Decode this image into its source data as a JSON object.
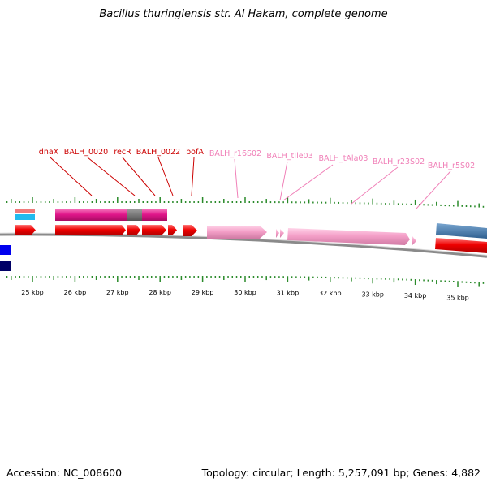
{
  "title": "Bacillus thuringiensis str. Al Hakam, complete genome",
  "footer": {
    "accession": "Accession: NC_008600",
    "stats": "Topology: circular; Length: 5,257,091 bp; Genes: 4,882"
  },
  "colors": {
    "cds": "#ee0000",
    "gene": "#e6168c",
    "rna": "#f4a0c8",
    "rna_label": "#f080b8",
    "cds_label": "#cc0000",
    "tick": "#2a8a2a",
    "backbone": "#8a8a8a",
    "unannotated": "#707070",
    "blue_feature": "#4a7fb0",
    "navy_feature": "#000066",
    "bright_blue": "#0000ee",
    "cyan_track": "#22bbee",
    "salmon_track": "#f07a7a"
  },
  "scale": {
    "unit": "kbp",
    "ticks": [
      {
        "kbp": 25,
        "label": "25 kbp"
      },
      {
        "kbp": 26,
        "label": "26 kbp"
      },
      {
        "kbp": 27,
        "label": "27 kbp"
      },
      {
        "kbp": 28,
        "label": "28 kbp"
      },
      {
        "kbp": 29,
        "label": "29 kbp"
      },
      {
        "kbp": 30,
        "label": "30 kbp"
      },
      {
        "kbp": 31,
        "label": "31 kbp"
      },
      {
        "kbp": 32,
        "label": "32 kbp"
      },
      {
        "kbp": 33,
        "label": "33 kbp"
      },
      {
        "kbp": 34,
        "label": "34 kbp"
      },
      {
        "kbp": 35,
        "label": "35 kbp"
      }
    ]
  },
  "features": [
    {
      "name": "dnaX",
      "kind": "cds",
      "labeled": true
    },
    {
      "name": "BALH_0020",
      "kind": "cds",
      "labeled": true
    },
    {
      "name": "recR",
      "kind": "cds",
      "labeled": true
    },
    {
      "name": "BALH_0022",
      "kind": "cds",
      "labeled": true
    },
    {
      "name": "bofA",
      "kind": "cds",
      "labeled": true
    },
    {
      "name": "BALH_r16S02",
      "kind": "rna",
      "labeled": true
    },
    {
      "name": "BALH_tIle03",
      "kind": "rna",
      "labeled": true
    },
    {
      "name": "BALH_tAla03",
      "kind": "rna",
      "labeled": true
    },
    {
      "name": "BALH_r23S02",
      "kind": "rna",
      "labeled": true
    },
    {
      "name": "BALH_r5S02",
      "kind": "rna",
      "labeled": true
    }
  ]
}
